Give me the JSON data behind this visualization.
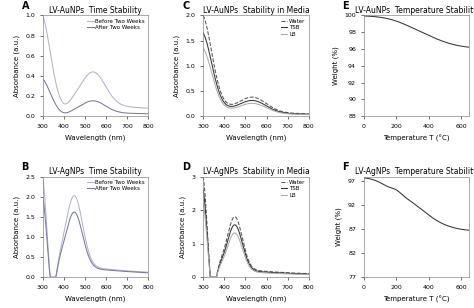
{
  "panel_A": {
    "title": "LV-AuNPs  Time Stability",
    "xlabel": "Wavelength (nm)",
    "ylabel": "Absorbance (a.u.)",
    "xlim": [
      300,
      800
    ],
    "ylim": [
      0,
      1.0
    ],
    "yticks": [
      0,
      0.2,
      0.4,
      0.6,
      0.8,
      1.0
    ],
    "legend": [
      "Before Two Weeks",
      "After Two Weeks"
    ],
    "line_colors": [
      "#b0b4cc",
      "#7878a0"
    ],
    "line_styles": [
      "-",
      "-"
    ]
  },
  "panel_B": {
    "title": "LV-AgNPs  Time Stability",
    "xlabel": "Wavelength (nm)",
    "ylabel": "Absorbance (a.u.)",
    "xlim": [
      300,
      800
    ],
    "ylim": [
      0,
      2.5
    ],
    "yticks": [
      0,
      0.5,
      1.0,
      1.5,
      2.0,
      2.5
    ],
    "legend": [
      "Before Two Weeks",
      "After Two Weeks"
    ],
    "line_colors": [
      "#b0b4cc",
      "#7878a0"
    ],
    "line_styles": [
      "-",
      "-"
    ]
  },
  "panel_C": {
    "title": "LV-AuNPs  Stability in Media",
    "xlabel": "Wavelength (nm)",
    "ylabel": "Absorbance (a.u.)",
    "xlim": [
      300,
      800
    ],
    "ylim": [
      0,
      2.0
    ],
    "yticks": [
      0,
      0.5,
      1.0,
      1.5,
      2.0
    ],
    "legend": [
      "Water",
      "TSB",
      "LB"
    ],
    "line_colors": [
      "#555555",
      "#333333",
      "#aaaaaa"
    ],
    "line_styles": [
      "--",
      "-",
      "-"
    ]
  },
  "panel_D": {
    "title": "LV-AgNPs  Stability in Media",
    "xlabel": "Wavelength (nm)",
    "ylabel": "Absorbance (a.u.)",
    "xlim": [
      300,
      800
    ],
    "ylim": [
      0,
      3.0
    ],
    "yticks": [
      0,
      1,
      2,
      3
    ],
    "legend": [
      "Water",
      "TSB",
      "LB"
    ],
    "line_colors": [
      "#555555",
      "#333333",
      "#aaaaaa"
    ],
    "line_styles": [
      "--",
      "-",
      "-"
    ]
  },
  "panel_E": {
    "title": "LV-AuNPs  Temperature Stability",
    "xlabel": "Temperature T (°C)",
    "ylabel": "Weight (%)",
    "xlim": [
      0,
      650
    ],
    "ylim": [
      88,
      100
    ],
    "yticks": [
      88,
      90,
      92,
      94,
      96,
      98,
      100
    ],
    "line_color": "#333333",
    "line_style": "-"
  },
  "panel_F": {
    "title": "LV-AgNPs  Temperature Stability",
    "xlabel": "Temperature T (°C)",
    "ylabel": "Weight (%)",
    "xlim": [
      0,
      650
    ],
    "ylim": [
      77,
      98
    ],
    "yticks": [
      77,
      82,
      87,
      92,
      97
    ],
    "line_color": "#333333",
    "line_style": "-"
  },
  "label_fontsize": 5.0,
  "title_fontsize": 5.5,
  "tick_fontsize": 4.5,
  "legend_fontsize": 4.0,
  "background_color": "#ffffff"
}
